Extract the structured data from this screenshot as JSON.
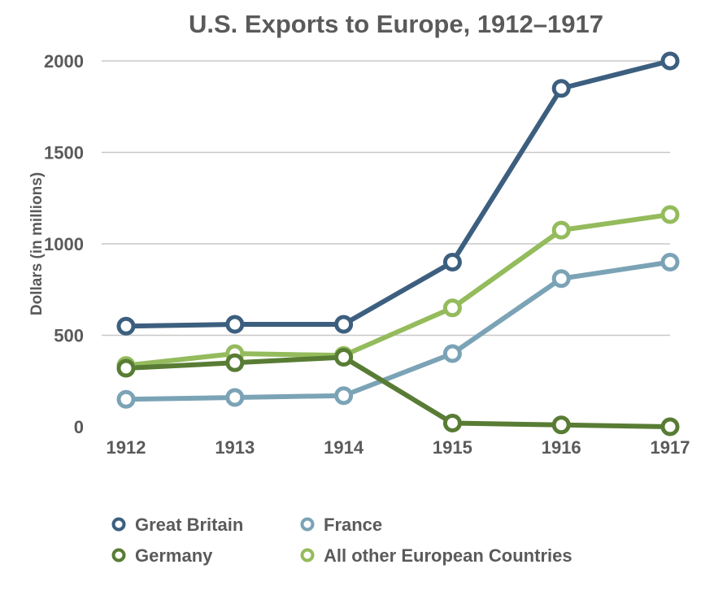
{
  "chart_data": {
    "type": "line",
    "title": "U.S. Exports to Europe, 1912–1917",
    "xlabel": "",
    "ylabel": "Dollars (in millions)",
    "categories": [
      "1912",
      "1913",
      "1914",
      "1915",
      "1916",
      "1917"
    ],
    "ylim": [
      0,
      2000
    ],
    "yticks": [
      0,
      500,
      1000,
      1500,
      2000
    ],
    "grid": true,
    "legend_position": "bottom",
    "series": [
      {
        "name": "Great Britain",
        "color": "#3c5f7f",
        "values": [
          550,
          560,
          560,
          900,
          1850,
          2000
        ]
      },
      {
        "name": "Germany",
        "color": "#587c34",
        "values": [
          320,
          350,
          380,
          20,
          10,
          0
        ]
      },
      {
        "name": "France",
        "color": "#7ba3b6",
        "values": [
          150,
          160,
          170,
          400,
          810,
          900
        ]
      },
      {
        "name": "All other European Countries",
        "color": "#94bb5c",
        "values": [
          335,
          400,
          390,
          650,
          1075,
          1160
        ]
      }
    ]
  }
}
